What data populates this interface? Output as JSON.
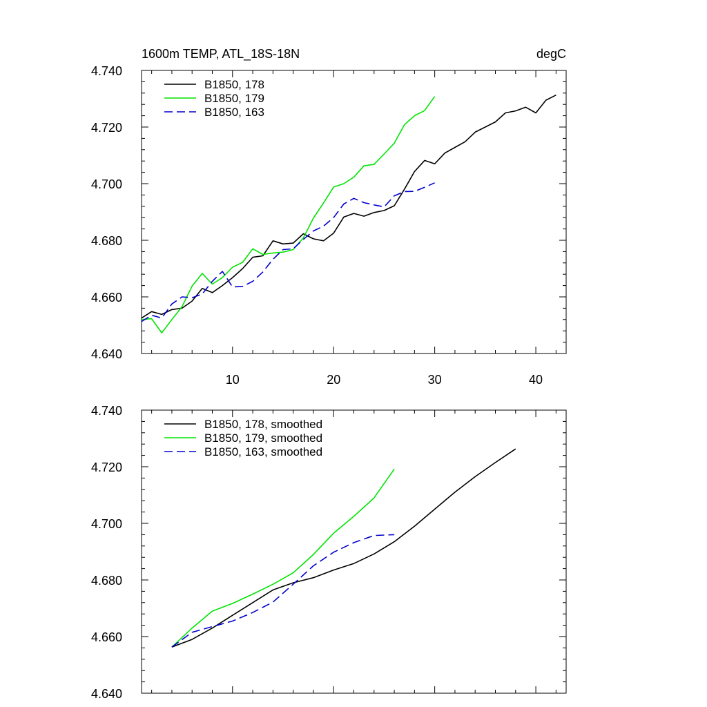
{
  "colors": {
    "s178": "#000000",
    "s179": "#00e400",
    "s163": "#0000cc"
  },
  "chart_data": [
    {
      "type": "line",
      "title": "1600m TEMP, ATL_18S-18N",
      "units": "degC",
      "xlim": [
        1,
        43
      ],
      "ylim": [
        4.64,
        4.74
      ],
      "xticks": [
        "10",
        "20",
        "30",
        "40"
      ],
      "yticks": [
        "4.640",
        "4.660",
        "4.680",
        "4.700",
        "4.720",
        "4.740"
      ],
      "legend_loc": "top-left",
      "series": [
        {
          "name": "B1850, 178",
          "color": "#000000",
          "dash": "solid",
          "x": [
            1,
            2,
            3,
            4,
            5,
            6,
            7,
            8,
            9,
            10,
            11,
            12,
            13,
            14,
            15,
            16,
            17,
            18,
            19,
            20,
            21,
            22,
            23,
            24,
            25,
            26,
            27,
            28,
            29,
            30,
            31,
            32,
            33,
            34,
            35,
            36,
            37,
            38,
            39,
            40,
            41,
            42
          ],
          "y": [
            4.6525,
            4.6548,
            4.6538,
            4.6555,
            4.656,
            4.6585,
            4.663,
            4.6615,
            4.664,
            4.6668,
            4.67,
            4.674,
            4.6745,
            4.6798,
            4.6787,
            4.679,
            4.6823,
            4.6805,
            4.6798,
            4.6825,
            4.6882,
            4.6895,
            4.6885,
            4.6898,
            4.6905,
            4.6922,
            4.698,
            4.7043,
            4.7082,
            4.707,
            4.7108,
            4.7128,
            4.7148,
            4.7182,
            4.72,
            4.7218,
            4.725,
            4.7257,
            4.727,
            4.725,
            4.7295,
            4.7313
          ]
        },
        {
          "name": "B1850, 179",
          "color": "#00e400",
          "dash": "solid",
          "x": [
            1,
            2,
            3,
            4,
            5,
            6,
            7,
            8,
            9,
            10,
            11,
            12,
            13,
            14,
            15,
            16,
            17,
            18,
            19,
            20,
            21,
            22,
            23,
            24,
            25,
            26,
            27,
            28,
            29,
            30
          ],
          "y": [
            4.652,
            4.6523,
            4.6473,
            4.652,
            4.6565,
            4.6638,
            4.6683,
            4.6645,
            4.6668,
            4.6705,
            4.6722,
            4.677,
            4.675,
            4.6755,
            4.6758,
            4.6767,
            4.6808,
            4.6878,
            4.6932,
            4.6988,
            4.7,
            4.7023,
            4.7063,
            4.7068,
            4.7105,
            4.7143,
            4.7208,
            4.724,
            4.7258,
            4.7308
          ]
        },
        {
          "name": "B1850, 163",
          "color": "#0000cc",
          "dash": "dashed",
          "x": [
            1,
            2,
            3,
            4,
            5,
            6,
            7,
            8,
            9,
            10,
            11,
            12,
            13,
            14,
            15,
            16,
            17,
            18,
            19,
            20,
            21,
            22,
            23,
            24,
            25,
            26,
            27,
            28,
            29,
            30
          ],
          "y": [
            4.6513,
            4.6535,
            4.6525,
            4.6575,
            4.66,
            4.6597,
            4.661,
            4.6655,
            4.669,
            4.6635,
            4.6637,
            4.6655,
            4.6688,
            4.6733,
            4.6767,
            4.677,
            4.6803,
            4.6833,
            4.685,
            4.688,
            4.6928,
            4.6948,
            4.6933,
            4.6925,
            4.6918,
            4.6957,
            4.6972,
            4.6973,
            4.6987,
            4.7003
          ]
        }
      ]
    },
    {
      "type": "line",
      "xlim": [
        1,
        43
      ],
      "ylim": [
        4.64,
        4.74
      ],
      "xticks": [
        "",
        "",
        "",
        ""
      ],
      "yticks": [
        "4.640",
        "4.660",
        "4.680",
        "4.700",
        "4.720",
        "4.740"
      ],
      "legend_loc": "top-left",
      "series": [
        {
          "name": "B1850, 178, smoothed",
          "color": "#000000",
          "dash": "solid",
          "x": [
            4,
            6,
            8,
            10,
            12,
            14,
            16,
            18,
            20,
            22,
            24,
            26,
            28,
            30,
            32,
            34,
            36,
            38
          ],
          "y": [
            4.6563,
            4.659,
            4.663,
            4.6675,
            4.672,
            4.6765,
            4.679,
            4.6808,
            4.6835,
            4.6858,
            4.6892,
            4.6935,
            4.699,
            4.705,
            4.711,
            4.7165,
            4.7215,
            4.7263
          ]
        },
        {
          "name": "B1850, 179, smoothed",
          "color": "#00e400",
          "dash": "solid",
          "x": [
            4,
            6,
            8,
            10,
            12,
            14,
            16,
            18,
            20,
            22,
            24,
            26
          ],
          "y": [
            4.6563,
            4.663,
            4.669,
            4.6717,
            4.675,
            4.6785,
            4.6825,
            4.689,
            4.6965,
            4.7025,
            4.709,
            4.7192
          ]
        },
        {
          "name": "B1850, 163, smoothed",
          "color": "#0000cc",
          "dash": "dashed",
          "x": [
            4,
            6,
            8,
            10,
            12,
            14,
            16,
            18,
            20,
            22,
            24,
            26
          ],
          "y": [
            4.6563,
            4.6615,
            4.6635,
            4.6655,
            4.6685,
            4.6722,
            4.6785,
            4.685,
            4.6898,
            4.6932,
            4.6957,
            4.696
          ]
        }
      ]
    }
  ]
}
